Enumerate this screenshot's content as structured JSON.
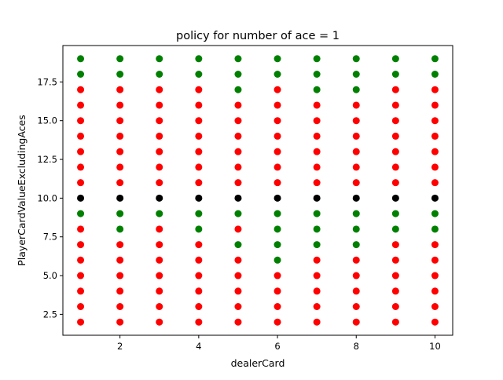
{
  "chart_data": {
    "type": "scatter",
    "title": "policy for number of ace = 1",
    "xlabel": "dealerCard",
    "ylabel": "PlayerCardValueExcludingAces",
    "xlim": [
      0.55,
      10.45
    ],
    "ylim": [
      1.15,
      19.85
    ],
    "xticks": [
      2,
      4,
      6,
      8,
      10
    ],
    "yticks": [
      2.5,
      5.0,
      7.5,
      10.0,
      12.5,
      15.0,
      17.5
    ],
    "ytick_labels": [
      "2.5",
      "5.0",
      "7.5",
      "10.0",
      "12.5",
      "15.0",
      "17.5"
    ],
    "grid": false,
    "dealer_cards": [
      1,
      2,
      3,
      4,
      5,
      6,
      7,
      8,
      9,
      10
    ],
    "player_values": [
      2,
      3,
      4,
      5,
      6,
      7,
      8,
      9,
      10,
      11,
      12,
      13,
      14,
      15,
      16,
      17,
      18,
      19
    ],
    "colors": {
      "R": "#ff0000",
      "G": "#008000",
      "K": "#000000"
    },
    "grid_colors": [
      "RRRRRRRRRR",
      "RRRRRRRRRR",
      "RRRRRRRRRR",
      "RRRRRRRRRR",
      "RRRRRGRRRR",
      "RRRRGGGGRR",
      "RGRGRGGGGG",
      "GGGGGGGGGG",
      "KKKKKKKKKK",
      "RRRRRRRRRR",
      "RRRRRRRRRR",
      "RRRRRRRRRR",
      "RRRRRRRRRR",
      "RRRRRRRRRR",
      "RRRRRRRRRR",
      "RRRRGRGGRR",
      "GGGGGGGGGG",
      "GGGGGGGGGG"
    ]
  }
}
